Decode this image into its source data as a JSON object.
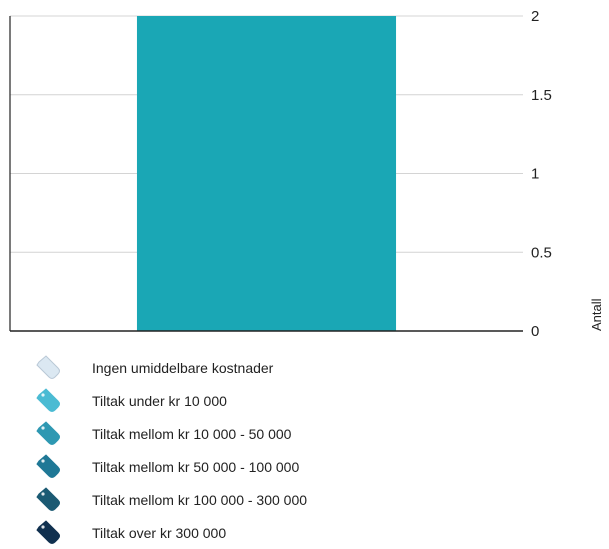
{
  "chart_data": {
    "type": "bar",
    "categories": [
      ""
    ],
    "values": [
      2
    ],
    "bar_color": "#1aa7b5",
    "grid": true,
    "ylim": [
      0,
      2
    ],
    "yticks": [
      0,
      0.5,
      1,
      1.5,
      2
    ],
    "ytick_labels": [
      "0",
      "0.5",
      "1",
      "1.5",
      "2"
    ],
    "ylabel": "Antall",
    "y_axis_side": "right",
    "legend": [
      {
        "label": "Ingen umiddelbare kostnader",
        "icon": "tag-icon-empty",
        "color": "#dbe8f2"
      },
      {
        "label": "Tiltak under kr 10 000",
        "icon": "tag-icon-low",
        "color": "#4bbbd3"
      },
      {
        "label": "Tiltak mellom kr 10 000 - 50 000",
        "icon": "tag-icon-medium-low",
        "color": "#2e98b2"
      },
      {
        "label": "Tiltak mellom kr 50 000 - 100 000",
        "icon": "tag-icon-medium",
        "color": "#1f7896"
      },
      {
        "label": "Tiltak mellom kr 100 000 - 300 000",
        "icon": "tag-icon-medium-high",
        "color": "#1b5a73"
      },
      {
        "label": "Tiltak over kr 300 000",
        "icon": "tag-icon-high",
        "color": "#10304f"
      }
    ],
    "legend_placement": "bottom-left"
  }
}
